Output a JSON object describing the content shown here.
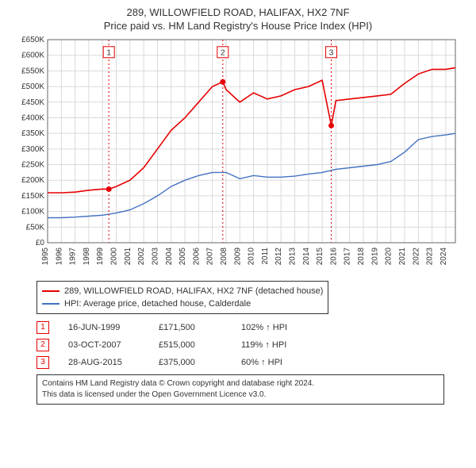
{
  "title_line1": "289, WILLOWFIELD ROAD, HALIFAX, HX2 7NF",
  "title_line2": "Price paid vs. HM Land Registry's House Price Index (HPI)",
  "chart": {
    "type": "line",
    "background_color": "#ffffff",
    "grid_color": "#d9d9d9",
    "border_color": "#666666",
    "ylim": [
      0,
      650000
    ],
    "ytick_step": 50000,
    "ytick_labels": [
      "£0",
      "£50K",
      "£100K",
      "£150K",
      "£200K",
      "£250K",
      "£300K",
      "£350K",
      "£400K",
      "£450K",
      "£500K",
      "£550K",
      "£600K",
      "£650K"
    ],
    "xlim": [
      1995,
      2024.7
    ],
    "xtick_step": 1,
    "xtick_labels": [
      "1995",
      "1996",
      "1997",
      "1998",
      "1999",
      "2000",
      "2001",
      "2002",
      "2003",
      "2004",
      "2005",
      "2006",
      "2007",
      "2008",
      "2009",
      "2010",
      "2011",
      "2012",
      "2013",
      "2014",
      "2015",
      "2016",
      "2017",
      "2018",
      "2019",
      "2020",
      "2021",
      "2022",
      "2023",
      "2024"
    ],
    "series": [
      {
        "name": "property",
        "label": "289, WILLOWFIELD ROAD, HALIFAX, HX2 7NF (detached house)",
        "color": "#e60000",
        "line_width": 1.6,
        "data": [
          [
            1995,
            160000
          ],
          [
            1996,
            160000
          ],
          [
            1997,
            162000
          ],
          [
            1998,
            168000
          ],
          [
            1999,
            172000
          ],
          [
            1999.46,
            171500
          ],
          [
            2000,
            180000
          ],
          [
            2001,
            200000
          ],
          [
            2002,
            240000
          ],
          [
            2003,
            300000
          ],
          [
            2004,
            360000
          ],
          [
            2005,
            400000
          ],
          [
            2006,
            450000
          ],
          [
            2007,
            500000
          ],
          [
            2007.76,
            515000
          ],
          [
            2008,
            490000
          ],
          [
            2009,
            450000
          ],
          [
            2010,
            480000
          ],
          [
            2011,
            460000
          ],
          [
            2012,
            470000
          ],
          [
            2013,
            490000
          ],
          [
            2014,
            500000
          ],
          [
            2015,
            520000
          ],
          [
            2015.66,
            375000
          ],
          [
            2016,
            455000
          ],
          [
            2017,
            460000
          ],
          [
            2018,
            465000
          ],
          [
            2019,
            470000
          ],
          [
            2020,
            475000
          ],
          [
            2021,
            510000
          ],
          [
            2022,
            540000
          ],
          [
            2023,
            555000
          ],
          [
            2024,
            555000
          ],
          [
            2024.7,
            560000
          ]
        ]
      },
      {
        "name": "hpi",
        "label": "HPI: Average price, detached house, Calderdale",
        "color": "#4472c4",
        "line_width": 1.4,
        "data": [
          [
            1995,
            80000
          ],
          [
            1996,
            80000
          ],
          [
            1997,
            82000
          ],
          [
            1998,
            85000
          ],
          [
            1999,
            88000
          ],
          [
            2000,
            95000
          ],
          [
            2001,
            105000
          ],
          [
            2002,
            125000
          ],
          [
            2003,
            150000
          ],
          [
            2004,
            180000
          ],
          [
            2005,
            200000
          ],
          [
            2006,
            215000
          ],
          [
            2007,
            225000
          ],
          [
            2008,
            225000
          ],
          [
            2009,
            205000
          ],
          [
            2010,
            215000
          ],
          [
            2011,
            210000
          ],
          [
            2012,
            210000
          ],
          [
            2013,
            213000
          ],
          [
            2014,
            220000
          ],
          [
            2015,
            225000
          ],
          [
            2016,
            235000
          ],
          [
            2017,
            240000
          ],
          [
            2018,
            245000
          ],
          [
            2019,
            250000
          ],
          [
            2020,
            260000
          ],
          [
            2021,
            290000
          ],
          [
            2022,
            330000
          ],
          [
            2023,
            340000
          ],
          [
            2024,
            345000
          ],
          [
            2024.7,
            350000
          ]
        ]
      }
    ],
    "sale_markers": [
      {
        "n": 1,
        "x": 1999.46,
        "y": 171500,
        "box_y": 610000
      },
      {
        "n": 2,
        "x": 2007.76,
        "y": 515000,
        "box_y": 610000
      },
      {
        "n": 3,
        "x": 2015.66,
        "y": 375000,
        "box_y": 610000
      }
    ],
    "marker_color": "#e60000",
    "marker_line_dash": "2,3"
  },
  "legend": {
    "items": [
      {
        "color": "#e60000",
        "text": "289, WILLOWFIELD ROAD, HALIFAX, HX2 7NF (detached house)"
      },
      {
        "color": "#4472c4",
        "text": "HPI: Average price, detached house, Calderdale"
      }
    ]
  },
  "sales": [
    {
      "n": "1",
      "date": "16-JUN-1999",
      "price": "£171,500",
      "hpi": "102% ↑ HPI"
    },
    {
      "n": "2",
      "date": "03-OCT-2007",
      "price": "£515,000",
      "hpi": "119% ↑ HPI"
    },
    {
      "n": "3",
      "date": "28-AUG-2015",
      "price": "£375,000",
      "hpi": "60% ↑ HPI"
    }
  ],
  "footer_line1": "Contains HM Land Registry data © Crown copyright and database right 2024.",
  "footer_line2": "This data is licensed under the Open Government Licence v3.0."
}
